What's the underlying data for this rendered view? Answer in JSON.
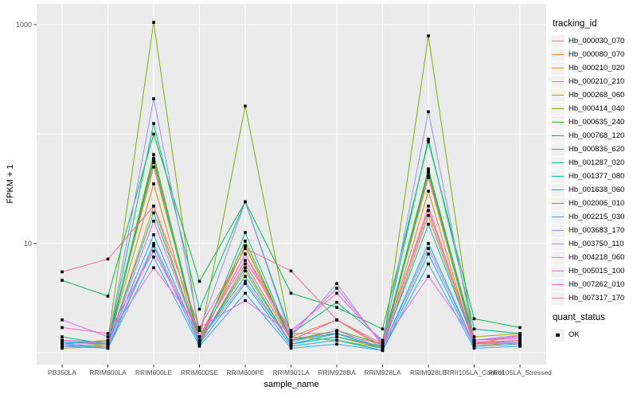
{
  "figure": {
    "background": "#FFFFFF",
    "panel_bg": "#EBEBEB",
    "grid_color": "#FFFFFF",
    "tick_color": "#333333",
    "tick_label_color": "#4D4D4D",
    "point_color": "#000000",
    "legend_key_bg": "#F2F2F2"
  },
  "axes": {
    "x_title": "sample_name",
    "y_title": "FPKM + 1",
    "y_tick_labels": [
      "1000",
      "10"
    ],
    "y_tick_values": [
      1000,
      10
    ],
    "y_minor_values": [
      100,
      1
    ],
    "y_scale": "log10"
  },
  "legend": {
    "tracking_title": "tracking_id",
    "quant_title": "quant_status",
    "quant_items": [
      {
        "label": "OK"
      }
    ]
  },
  "chart_data": {
    "type": "line",
    "title": "",
    "xlabel": "sample_name",
    "ylabel": "FPKM + 1",
    "y_scale": "log10",
    "ylim": [
      1,
      1500
    ],
    "y_breaks": [
      10,
      1000
    ],
    "y_minor_breaks": [
      1,
      100
    ],
    "grid": true,
    "legend_position": "right",
    "point_shape": "filled-square",
    "point_legend": {
      "title": "quant_status",
      "labels": [
        "OK"
      ]
    },
    "x_categories": [
      "PB350LA",
      "RRIM600LA",
      "RRIM600LE",
      "RRIM600SE",
      "RRIM600PE",
      "RRIM901LA",
      "RRIM928BA",
      "RRIM928LA",
      "RRIM928LE",
      "RRII105LA_Control",
      "RRII105LA_Stressed"
    ],
    "series": [
      {
        "name": "Hb_000030_070",
        "color": "#F8766D",
        "values": [
          1.3,
          1.25,
          55,
          1.3,
          8,
          1.5,
          1.5,
          1.2,
          40,
          1.25,
          1.3
        ]
      },
      {
        "name": "Hb_000080_070",
        "color": "#EA8331",
        "values": [
          1.2,
          1.3,
          50,
          1.4,
          9.3,
          1.4,
          2.0,
          1.15,
          42,
          1.2,
          1.45
        ]
      },
      {
        "name": "Hb_000210_020",
        "color": "#D89000",
        "values": [
          1.25,
          1.2,
          35,
          1.2,
          6.5,
          1.3,
          1.5,
          1.1,
          30,
          1.15,
          1.25
        ]
      },
      {
        "name": "Hb_000210_210",
        "color": "#C09B00",
        "values": [
          1.1,
          1.15,
          22,
          1.25,
          5.6,
          1.2,
          1.4,
          1.1,
          18,
          1.2,
          1.3
        ]
      },
      {
        "name": "Hb_000268_060",
        "color": "#A3A500",
        "values": [
          1.15,
          1.2,
          60,
          1.2,
          9.5,
          1.3,
          2.0,
          1.1,
          45,
          1.4,
          1.5
        ]
      },
      {
        "name": "Hb_000414_040",
        "color": "#7CAE00",
        "values": [
          1.2,
          1.3,
          1050,
          1.3,
          180,
          1.4,
          1.3,
          1.1,
          790,
          1.2,
          1.3
        ]
      },
      {
        "name": "Hb_000635_240",
        "color": "#39B600",
        "values": [
          1.3,
          1.2,
          65,
          1.3,
          10.5,
          1.3,
          1.6,
          1.2,
          48,
          1.3,
          1.4
        ]
      },
      {
        "name": "Hb_000768_120",
        "color": "#00BB4E",
        "values": [
          4.6,
          3.3,
          100,
          4.5,
          24,
          3.5,
          2.6,
          1.65,
          85,
          2.05,
          1.7
        ]
      },
      {
        "name": "Hb_000836_620",
        "color": "#00C087",
        "values": [
          1.4,
          1.2,
          125,
          2.5,
          24,
          1.5,
          2.9,
          1.3,
          90,
          1.65,
          1.5
        ]
      },
      {
        "name": "Hb_001287_020",
        "color": "#00C0AF",
        "values": [
          1.2,
          1.15,
          58,
          1.2,
          12.6,
          1.3,
          1.5,
          1.1,
          45,
          1.2,
          1.3
        ]
      },
      {
        "name": "Hb_001377_080",
        "color": "#00BFC4",
        "values": [
          1.3,
          1.2,
          19,
          1.3,
          5.0,
          1.2,
          1.4,
          1.15,
          15,
          1.25,
          1.2
        ]
      },
      {
        "name": "Hb_001638_060",
        "color": "#00BADE",
        "values": [
          1.2,
          1.1,
          9.5,
          1.2,
          4.3,
          1.15,
          1.3,
          1.05,
          8,
          1.15,
          1.2
        ]
      },
      {
        "name": "Hb_002006_010",
        "color": "#00B0F6",
        "values": [
          1.25,
          1.2,
          12,
          1.25,
          6.0,
          1.2,
          1.5,
          1.1,
          10,
          1.2,
          1.25
        ]
      },
      {
        "name": "Hb_002215_030",
        "color": "#35A2FF",
        "values": [
          1.15,
          1.1,
          7.5,
          1.15,
          3.5,
          1.1,
          1.2,
          1.05,
          6.5,
          1.1,
          1.15
        ]
      },
      {
        "name": "Hb_003683_170",
        "color": "#9590FF",
        "values": [
          1.3,
          1.25,
          210,
          1.6,
          24,
          1.4,
          4.3,
          1.15,
          160,
          1.3,
          1.45
        ]
      },
      {
        "name": "Hb_003750_110",
        "color": "#B983FF",
        "values": [
          1.2,
          1.15,
          10,
          1.3,
          4.5,
          1.25,
          1.6,
          1.1,
          9,
          1.2,
          1.25
        ]
      },
      {
        "name": "Hb_004218_060",
        "color": "#E76BF3",
        "values": [
          2.0,
          1.4,
          6.0,
          1.7,
          3.0,
          1.5,
          3.9,
          1.2,
          5.0,
          1.3,
          1.35
        ]
      },
      {
        "name": "Hb_005015_100",
        "color": "#FA62DB",
        "values": [
          1.7,
          1.5,
          8.5,
          1.4,
          7.0,
          1.6,
          3.5,
          1.25,
          20,
          1.3,
          1.4
        ]
      },
      {
        "name": "Hb_007262_010",
        "color": "#FF61CC",
        "values": [
          1.3,
          1.2,
          16,
          1.3,
          8.0,
          1.3,
          2.0,
          1.15,
          22,
          1.2,
          1.3
        ]
      },
      {
        "name": "Hb_007317_170",
        "color": "#FF6A98",
        "values": [
          5.5,
          7.2,
          22,
          1.7,
          9.0,
          5.6,
          2.0,
          1.2,
          20,
          1.25,
          1.2
        ]
      }
    ]
  }
}
